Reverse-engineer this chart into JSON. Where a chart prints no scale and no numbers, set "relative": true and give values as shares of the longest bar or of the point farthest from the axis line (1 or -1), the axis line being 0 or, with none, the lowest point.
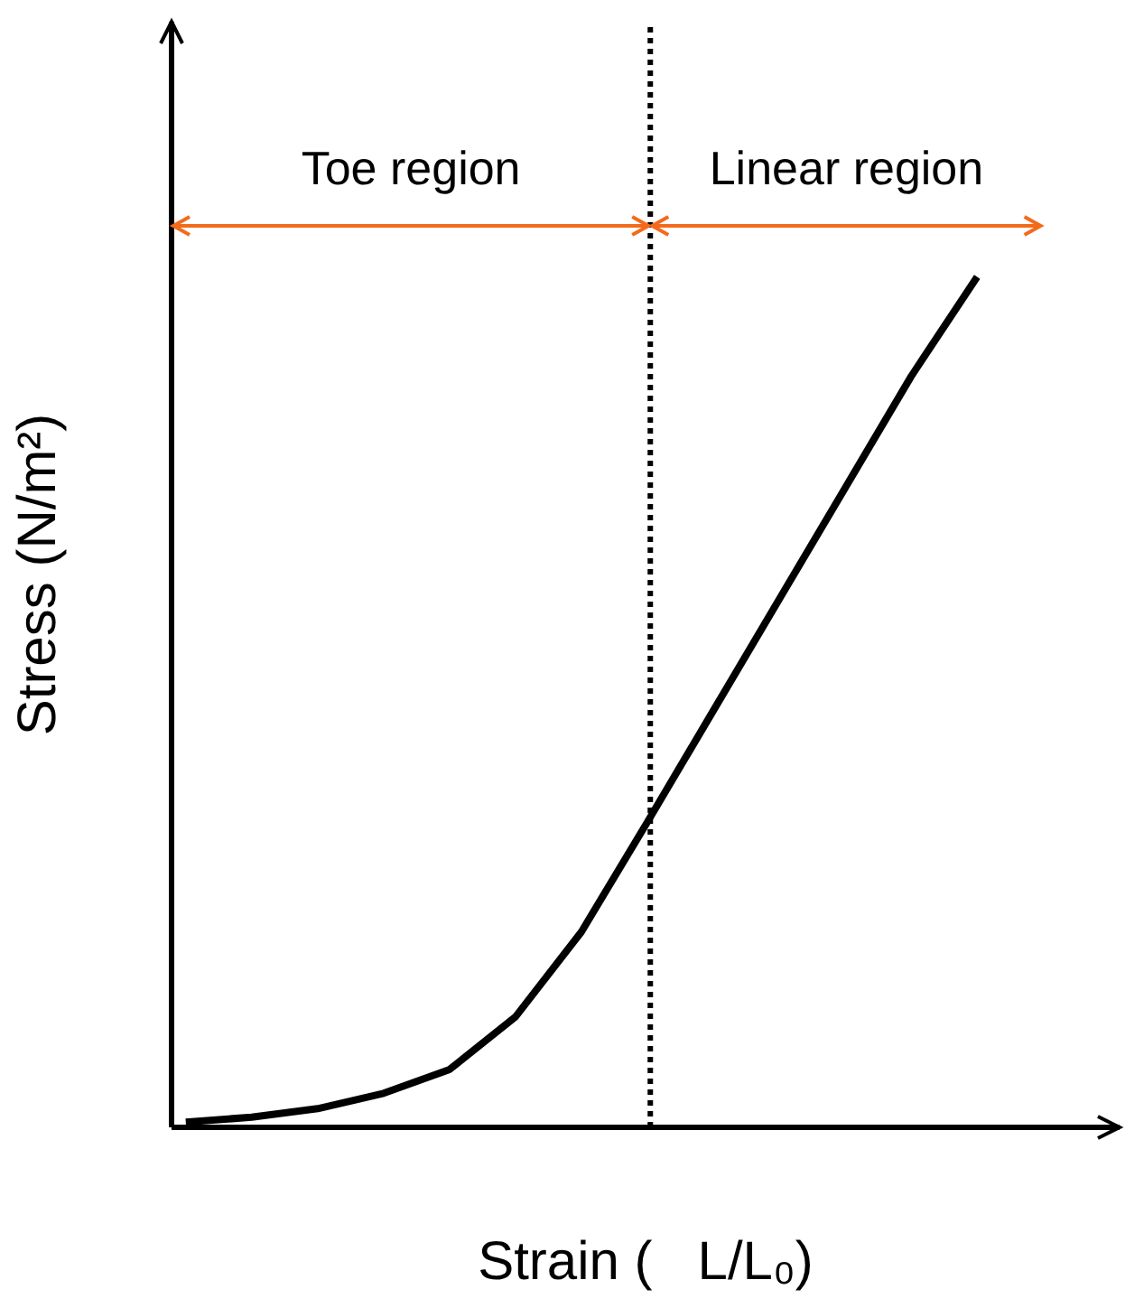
{
  "chart_data": {
    "type": "line",
    "relative": true,
    "xlabel": "Strain (   L/L₀)",
    "ylabel": "Stress (N/m²)",
    "categories": [
      null,
      null,
      null,
      null,
      null,
      null,
      null,
      null,
      null,
      null,
      null,
      null,
      null
    ],
    "series": [
      {
        "color": "#000000",
        "values": [
          0.006,
          0.012,
          0.022,
          0.04,
          0.068,
          0.13,
          0.23,
          0.359,
          0.49,
          0.621,
          0.752,
          0.883,
          1.0
        ]
      }
    ],
    "annotations": [
      "Toe region",
      "Linear region"
    ]
  }
}
